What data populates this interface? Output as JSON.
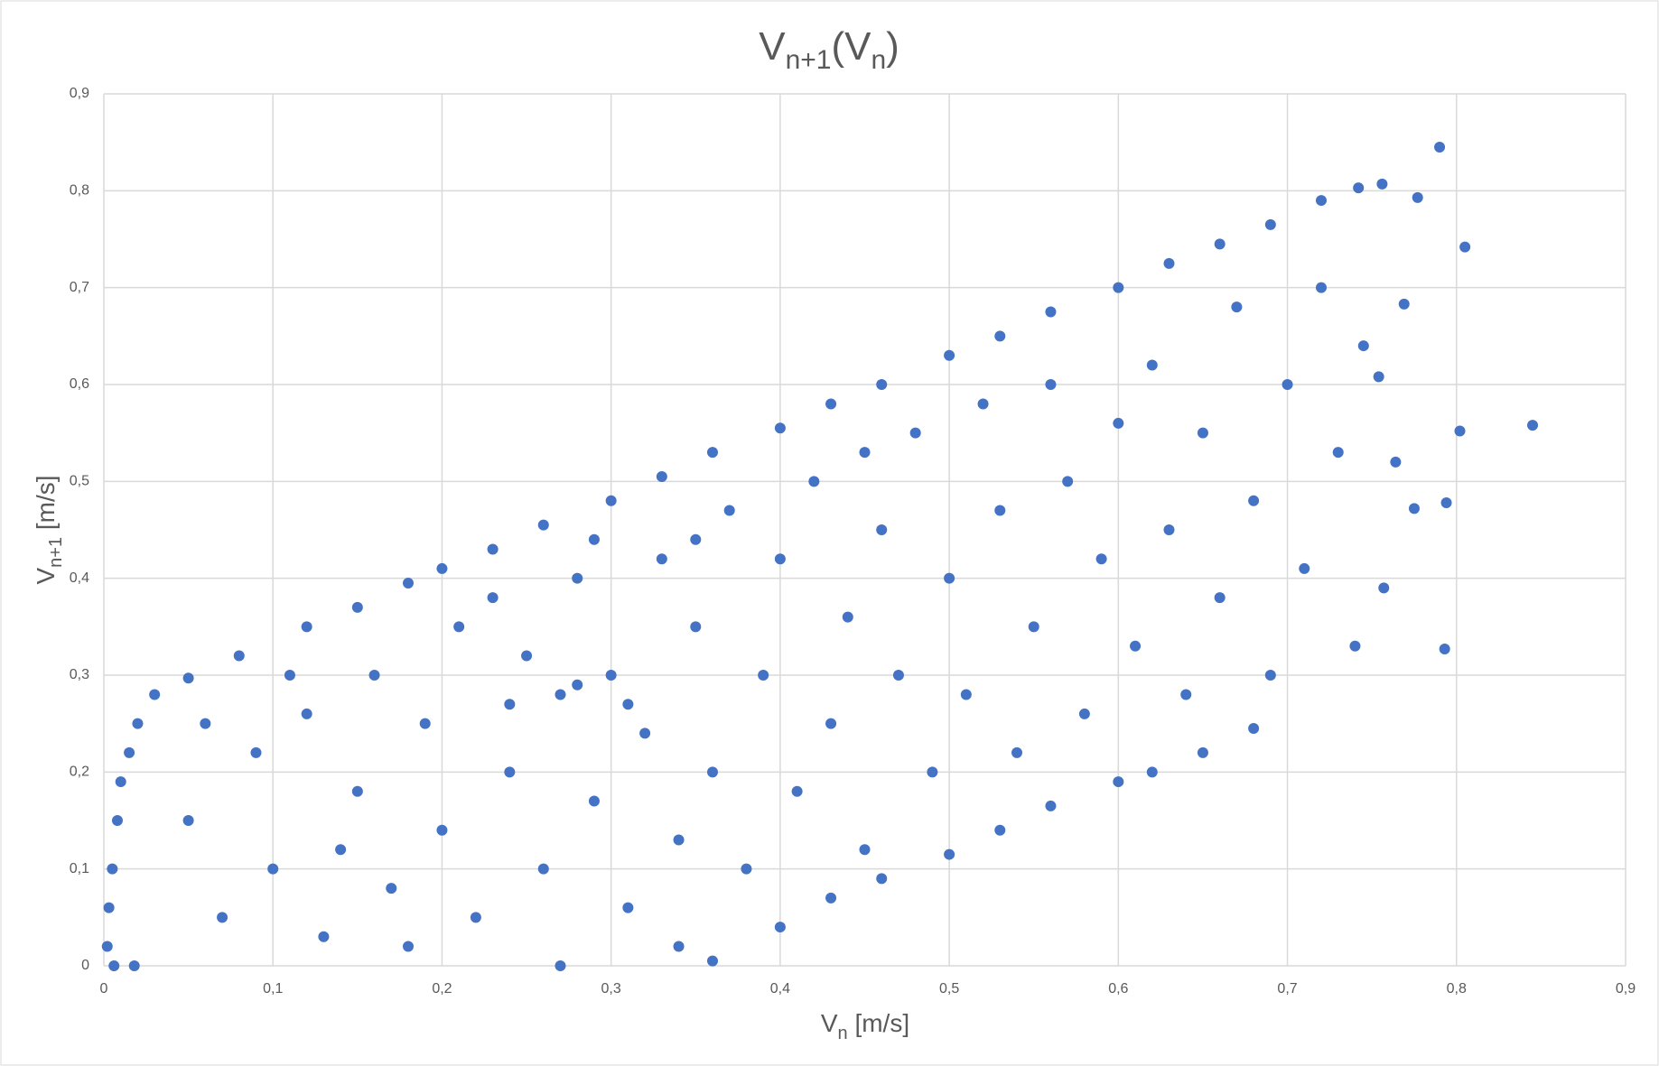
{
  "chart_data": {
    "type": "scatter",
    "title": {
      "main": "V",
      "main_sub": "n+1",
      "open": "(V",
      "open_sub": "n",
      "close": ")"
    },
    "x_label": {
      "main": "V",
      "sub": "n",
      "unit": " [m/s]"
    },
    "y_label": {
      "main": "V",
      "sub": "n+1",
      "unit": " [m/s]"
    },
    "color": "#4472c4",
    "grid": true,
    "xlim": [
      0,
      0.9
    ],
    "ylim": [
      0,
      0.9
    ],
    "xticks": [
      0,
      {
        "value": 0.1,
        "label": "0,1"
      },
      {
        "value": 0.2,
        "label": "0,2"
      },
      {
        "value": 0.3,
        "label": "0,3"
      },
      {
        "value": 0.4,
        "label": "0,4"
      },
      {
        "value": 0.5,
        "label": "0,5"
      },
      {
        "value": 0.6,
        "label": "0,6"
      },
      {
        "value": 0.7,
        "label": "0,7"
      },
      {
        "value": 0.8,
        "label": "0,8"
      },
      {
        "value": 0.9,
        "label": "0,9"
      }
    ],
    "yticks": [
      0,
      {
        "value": 0.1,
        "label": "0,1"
      },
      {
        "value": 0.2,
        "label": "0,2"
      },
      {
        "value": 0.3,
        "label": "0,3"
      },
      {
        "value": 0.4,
        "label": "0,4"
      },
      {
        "value": 0.5,
        "label": "0,5"
      },
      {
        "value": 0.6,
        "label": "0,6"
      },
      {
        "value": 0.7,
        "label": "0,7"
      },
      {
        "value": 0.8,
        "label": "0,8"
      },
      {
        "value": 0.9,
        "label": "0,9"
      }
    ],
    "x": [
      0.03,
      0.05,
      0.08,
      0.12,
      0.15,
      0.18,
      0.2,
      0.23,
      0.26,
      0.3,
      0.33,
      0.36,
      0.4,
      0.43,
      0.46,
      0.5,
      0.53,
      0.56,
      0.6,
      0.63,
      0.66,
      0.69,
      0.72,
      0.36,
      0.4,
      0.43,
      0.46,
      0.5,
      0.53,
      0.56,
      0.6,
      0.62,
      0.65,
      0.68,
      0.002,
      0.003,
      0.005,
      0.008,
      0.01,
      0.015,
      0.02,
      0.006,
      0.018,
      0.79,
      0.845,
      0.805,
      0.802,
      0.793,
      0.794,
      0.775,
      0.777,
      0.756,
      0.742,
      0.769,
      0.757,
      0.764,
      0.754,
      0.05,
      0.07,
      0.09,
      0.1,
      0.12,
      0.13,
      0.15,
      0.16,
      0.17,
      0.19,
      0.2,
      0.21,
      0.22,
      0.24,
      0.25,
      0.26,
      0.27,
      0.28,
      0.29,
      0.3,
      0.31,
      0.32,
      0.33,
      0.34,
      0.35,
      0.36,
      0.37,
      0.38,
      0.39,
      0.4,
      0.41,
      0.42,
      0.43,
      0.44,
      0.45,
      0.46,
      0.47,
      0.48,
      0.49,
      0.5,
      0.51,
      0.52,
      0.53,
      0.54,
      0.55,
      0.56,
      0.57,
      0.58,
      0.59,
      0.6,
      0.61,
      0.62,
      0.63,
      0.64,
      0.65,
      0.66,
      0.67,
      0.68,
      0.69,
      0.7,
      0.71,
      0.72,
      0.73,
      0.74,
      0.745,
      0.06,
      0.11,
      0.14,
      0.18,
      0.23,
      0.27,
      0.29,
      0.34,
      0.24,
      0.28,
      0.31,
      0.45,
      0.35
    ],
    "values": [
      0.28,
      0.297,
      0.32,
      0.35,
      0.37,
      0.395,
      0.41,
      0.43,
      0.455,
      0.48,
      0.505,
      0.53,
      0.555,
      0.58,
      0.6,
      0.63,
      0.65,
      0.675,
      0.7,
      0.725,
      0.745,
      0.765,
      0.79,
      0.005,
      0.04,
      0.07,
      0.09,
      0.115,
      0.14,
      0.165,
      0.19,
      0.2,
      0.22,
      0.245,
      0.02,
      0.06,
      0.1,
      0.15,
      0.19,
      0.22,
      0.25,
      0,
      0,
      0.845,
      0.558,
      0.742,
      0.552,
      0.327,
      0.478,
      0.472,
      0.793,
      0.807,
      0.803,
      0.683,
      0.39,
      0.52,
      0.608,
      0.15,
      0.05,
      0.22,
      0.1,
      0.26,
      0.03,
      0.18,
      0.3,
      0.08,
      0.25,
      0.14,
      0.35,
      0.05,
      0.2,
      0.32,
      0.1,
      0.28,
      0.4,
      0.17,
      0.3,
      0.06,
      0.24,
      0.42,
      0.13,
      0.35,
      0.2,
      0.47,
      0.1,
      0.3,
      0.42,
      0.18,
      0.5,
      0.25,
      0.36,
      0.12,
      0.45,
      0.3,
      0.55,
      0.2,
      0.4,
      0.28,
      0.58,
      0.47,
      0.22,
      0.35,
      0.6,
      0.5,
      0.26,
      0.42,
      0.56,
      0.33,
      0.62,
      0.45,
      0.28,
      0.55,
      0.38,
      0.68,
      0.48,
      0.3,
      0.6,
      0.41,
      0.7,
      0.53,
      0.33,
      0.64,
      0.25,
      0.3,
      0.12,
      0.02,
      0.38,
      0,
      0.44,
      0.02,
      0.27,
      0.29,
      0.27,
      0.53,
      0.44
    ]
  }
}
